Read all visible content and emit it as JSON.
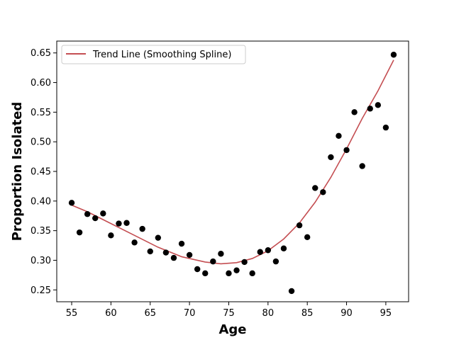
{
  "chart_data": {
    "type": "scatter",
    "title": "",
    "xlabel": "Age",
    "ylabel": "Proportion Isolated",
    "xlim": [
      53.1,
      97.9
    ],
    "ylim": [
      0.23,
      0.67
    ],
    "xticks": [
      55,
      60,
      65,
      70,
      75,
      80,
      85,
      90,
      95
    ],
    "yticks": [
      0.25,
      0.3,
      0.35,
      0.4,
      0.45,
      0.5,
      0.55,
      0.6,
      0.65
    ],
    "grid": false,
    "legend_position": "top-left",
    "colors": {
      "points": "#000000",
      "trend": "#c44e52"
    },
    "series": [
      {
        "kind": "points",
        "x": [
          55,
          56,
          57,
          58,
          59,
          60,
          61,
          62,
          63,
          64,
          65,
          66,
          67,
          68,
          69,
          70,
          71,
          72,
          73,
          74,
          75,
          76,
          77,
          78,
          79,
          80,
          81,
          82,
          83,
          84,
          85,
          86,
          87,
          88,
          89,
          90,
          91,
          92,
          93,
          94,
          95,
          96
        ],
        "y": [
          0.397,
          0.347,
          0.378,
          0.371,
          0.379,
          0.342,
          0.362,
          0.363,
          0.33,
          0.353,
          0.315,
          0.338,
          0.313,
          0.304,
          0.328,
          0.309,
          0.285,
          0.278,
          0.298,
          0.311,
          0.278,
          0.283,
          0.297,
          0.278,
          0.314,
          0.317,
          0.298,
          0.32,
          0.248,
          0.359,
          0.339,
          0.422,
          0.415,
          0.474,
          0.51,
          0.486,
          0.55,
          0.459,
          0.556,
          0.562,
          0.524,
          0.647
        ]
      },
      {
        "kind": "line",
        "name": "Trend Line (Smoothing Spline)",
        "x": [
          55,
          57,
          60,
          63,
          66,
          69,
          72,
          74,
          76,
          78,
          80,
          82,
          84,
          86,
          88,
          90,
          92,
          94,
          96
        ],
        "y": [
          0.393,
          0.382,
          0.362,
          0.342,
          0.322,
          0.306,
          0.297,
          0.294,
          0.296,
          0.303,
          0.316,
          0.336,
          0.363,
          0.398,
          0.44,
          0.488,
          0.5395,
          0.586,
          0.638
        ]
      }
    ]
  }
}
